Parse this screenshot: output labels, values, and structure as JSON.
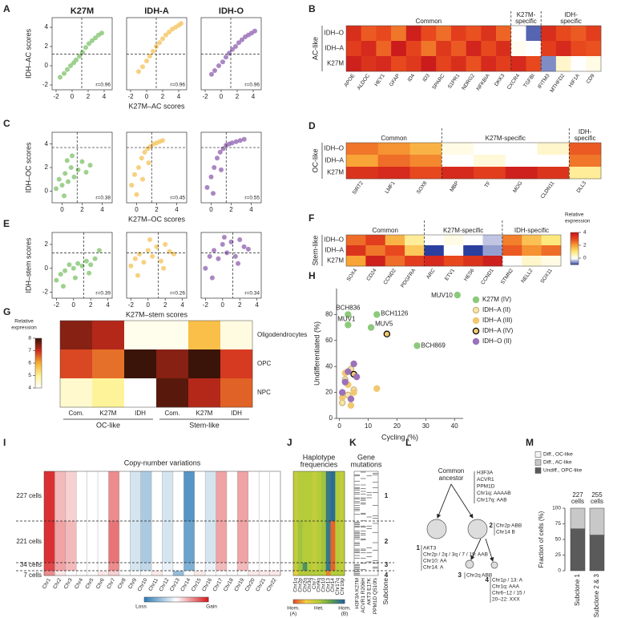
{
  "A": {
    "letter": "A",
    "ylabel": "IDH–AC scores",
    "xlabel": "K27M–AC scores",
    "xlim": [
      -2.5,
      5
    ],
    "ylim": [
      -2.5,
      5
    ],
    "xticks": [
      -2,
      0,
      2,
      4
    ],
    "yticks": [
      -2,
      0,
      2,
      4
    ],
    "thresholds": {
      "x": 1.2,
      "y": 1.2
    },
    "panels": [
      {
        "title": "K27M",
        "color": "#8dc97b",
        "x": [
          -1.5,
          -1,
          -0.6,
          -0.2,
          0.2,
          0.5,
          0.9,
          1.3,
          1.7,
          2.1,
          2.5,
          2.9,
          3.3,
          3.7
        ],
        "y": [
          -1.2,
          -0.8,
          -0.4,
          0,
          0.3,
          0.6,
          1,
          1.4,
          1.9,
          2.3,
          2.6,
          2.9,
          3.2,
          3.4
        ],
        "r": "r=0.96"
      },
      {
        "title": "IDH-A",
        "color": "#f6c96b",
        "x": [
          -1,
          -0.5,
          0,
          0.4,
          0.8,
          1.2,
          1.6,
          2,
          2.4,
          2.8,
          3.2,
          3.6,
          4,
          4.3
        ],
        "y": [
          -0.6,
          -0.1,
          0.5,
          1,
          1.5,
          2,
          2.4,
          2.8,
          3.2,
          3.5,
          3.8,
          4,
          4.2,
          4.4
        ],
        "r": "r=0.96"
      },
      {
        "title": "IDH-O",
        "color": "#9b72b9",
        "x": [
          -1.2,
          -0.8,
          -0.3,
          0.2,
          0.6,
          1,
          1.4,
          1.8,
          2.2,
          2.6,
          3,
          3.4,
          3.8,
          4.2
        ],
        "y": [
          -0.9,
          -0.5,
          0,
          0.4,
          0.9,
          1.3,
          1.7,
          2,
          2.4,
          2.7,
          3,
          3.2,
          3.4,
          3.6
        ],
        "r": "r=0.96"
      }
    ]
  },
  "C": {
    "letter": "C",
    "ylabel": "IDH–OC scores",
    "xlabel": "K27M–OC scores",
    "xlim": [
      -1,
      5
    ],
    "ylim": [
      -1,
      5
    ],
    "xticks": [
      0,
      2,
      4
    ],
    "yticks": [
      0,
      2,
      4
    ],
    "thresholds": {
      "x": 1.5,
      "y": 3.7
    },
    "panels": [
      {
        "color": "#8dc97b",
        "x": [
          -0.6,
          -0.3,
          0,
          0.3,
          0.6,
          0.9,
          1.2,
          1.6,
          2,
          2.4,
          2.8,
          0.2,
          0.5,
          1
        ],
        "y": [
          0.2,
          1,
          0.5,
          1.5,
          0.8,
          2,
          1.2,
          1.8,
          2.5,
          1.6,
          2.2,
          -0.4,
          2.6,
          3
        ],
        "r": "r=0.38"
      },
      {
        "color": "#f6c96b",
        "x": [
          -0.5,
          -0.2,
          0.2,
          0.5,
          0.8,
          1.1,
          1.4,
          1.7,
          2,
          2.3,
          2.6,
          0,
          0.6,
          1.2
        ],
        "y": [
          0.5,
          1.4,
          2,
          2.8,
          3.3,
          3.6,
          3.8,
          4,
          4.1,
          4.2,
          4.3,
          -0.3,
          1,
          2.4
        ],
        "r": "r=0.45"
      },
      {
        "color": "#9b72b9",
        "x": [
          -0.4,
          0,
          0.3,
          0.6,
          0.9,
          1.2,
          1.5,
          1.8,
          2.1,
          2.5,
          2.9,
          3.3,
          0.2,
          1
        ],
        "y": [
          0.3,
          1.2,
          2,
          2.8,
          3.3,
          3.6,
          3.9,
          4,
          4.1,
          4.2,
          4.3,
          4.4,
          -0.2,
          1.8
        ],
        "r": "r=0.55"
      }
    ]
  },
  "E": {
    "letter": "E",
    "ylabel": "IDH–stem scores",
    "xlabel": "K27M–stem scores",
    "xlim": [
      -2.5,
      4.5
    ],
    "ylim": [
      -2.5,
      3
    ],
    "xticks": [
      -2,
      0,
      2,
      4
    ],
    "yticks": [
      -2,
      0,
      2
    ],
    "thresholds": {
      "x": 1.2,
      "y": 1.3
    },
    "panels": [
      {
        "color": "#8dc97b",
        "x": [
          -2,
          -1.5,
          -1,
          -0.5,
          0,
          0.5,
          1,
          1.5,
          2,
          2.5,
          3,
          -1.2,
          0.2,
          1.8
        ],
        "y": [
          -1,
          -0.5,
          -0.2,
          0.3,
          0,
          0.4,
          0.2,
          0.6,
          0.3,
          0.8,
          1.5,
          -1.5,
          -0.8,
          -0.4
        ],
        "r": "r=0.39"
      },
      {
        "color": "#f6c96b",
        "x": [
          -2,
          -1.5,
          -1,
          -0.5,
          0,
          0.5,
          1,
          1.5,
          2,
          2.5,
          3,
          -1.2,
          0.2,
          1.8
        ],
        "y": [
          0.2,
          0.8,
          1.2,
          0.5,
          1.5,
          1,
          1.8,
          0.6,
          2,
          1.4,
          1.2,
          -0.6,
          2.4,
          0
        ],
        "r": "r=0.26"
      },
      {
        "color": "#9b72b9",
        "x": [
          -2,
          -1.5,
          -1,
          -0.5,
          0,
          0.5,
          1,
          1.5,
          2,
          2.5,
          3,
          -1.2,
          0.2,
          1.8
        ],
        "y": [
          0,
          1,
          1.5,
          0.8,
          2,
          1.3,
          2.2,
          1,
          2.4,
          1.8,
          1.6,
          -0.8,
          2.6,
          0.4
        ],
        "r": "r=0.34"
      }
    ]
  },
  "B": {
    "letter": "B",
    "row_group": "AC-like",
    "rows": [
      "IDH–O",
      "IDH–A",
      "K27M"
    ],
    "groups": [
      {
        "label": [
          "Common"
        ],
        "genes": [
          "APOE",
          "ALDOC",
          "HEY1",
          "GFAP",
          "ID4",
          "ID3",
          "SPARC",
          "S1PR1",
          "NDRG2",
          "NFKBIA",
          "DKK3"
        ],
        "values": [
          [
            3.5,
            2.8,
            3,
            2.5,
            3.8,
            3,
            2.6,
            3.2,
            2.9,
            3.4,
            2.7
          ],
          [
            3.2,
            3.6,
            2.7,
            3.9,
            3.1,
            2.5,
            3.3,
            2.8,
            3.7,
            3,
            3.5
          ],
          [
            3.8,
            3.4,
            3.6,
            3,
            3.3,
            3.9,
            3.1,
            3.5,
            2.9,
            3.6,
            3.2
          ]
        ]
      },
      {
        "label": [
          "K27M-",
          "specific"
        ],
        "genes": [
          "CXCR4",
          "TGFBI"
        ],
        "values": [
          [
            0,
            -0.8
          ],
          [
            0.1,
            0
          ],
          [
            3.6,
            3
          ]
        ]
      },
      {
        "label": [
          "IDH-",
          "specific"
        ],
        "genes": [
          "IFITM3",
          "MTHFD2",
          "HIF1A",
          "CD9"
        ],
        "values": [
          [
            3.5,
            3,
            2.8,
            3.2
          ],
          [
            3.2,
            3.6,
            3,
            2.9
          ],
          [
            -0.6,
            0.4,
            0,
            0.2
          ]
        ]
      }
    ]
  },
  "D": {
    "letter": "D",
    "row_group": "OC-like",
    "rows": [
      "IDH–O",
      "IDH–A",
      "K27M"
    ],
    "groups": [
      {
        "label": [
          "Common"
        ],
        "genes": [
          "SIRT2",
          "LMF1",
          "SOX8"
        ],
        "values": [
          [
            2.5,
            2.2,
            1.8
          ],
          [
            2,
            2.6,
            2.3
          ],
          [
            3.4,
            3.6,
            3
          ]
        ]
      },
      {
        "label": [
          "K27M-specific"
        ],
        "genes": [
          "MBP",
          "TF",
          "MOG",
          "CLDN11"
        ],
        "values": [
          [
            0.2,
            0,
            0,
            0.4
          ],
          [
            0,
            0.3,
            0,
            0
          ],
          [
            3.6,
            3.2,
            3.8,
            3.4
          ]
        ]
      },
      {
        "label": [
          "IDH-",
          "specific"
        ],
        "genes": [
          "DLL3"
        ],
        "values": [
          [
            2.8
          ],
          [
            2.5
          ],
          [
            0.8
          ]
        ]
      }
    ]
  },
  "F": {
    "letter": "F",
    "row_group": "Stem-like",
    "rows": [
      "IDH–O",
      "IDH–A",
      "K27M"
    ],
    "groups": [
      {
        "label": [
          "Common"
        ],
        "genes": [
          "SOX4",
          "CD24",
          "CCND2",
          "PDGFRA"
        ],
        "values": [
          [
            2.6,
            3.2,
            1.8,
            0.8
          ],
          [
            3.4,
            2.5,
            3,
            1.5
          ],
          [
            2,
            3.8,
            2.6,
            3.2
          ]
        ]
      },
      {
        "label": [
          "K27M-specific"
        ],
        "genes": [
          "ARC",
          "ETV1",
          "HES6",
          "CCND1"
        ],
        "values": [
          [
            0,
            0.2,
            0,
            -0.3
          ],
          [
            -1,
            0,
            -1,
            -0.5
          ],
          [
            3.6,
            3,
            3.4,
            3.8
          ]
        ]
      },
      {
        "label": [
          "IDH-specific"
        ],
        "genes": [
          "STMN2",
          "NELL2",
          "SOX11"
        ],
        "values": [
          [
            2.4,
            1.6,
            1
          ],
          [
            2.8,
            2.2,
            2.6
          ],
          [
            0,
            0.4,
            0.2
          ]
        ]
      }
    ],
    "colorbar": {
      "label": [
        "Relative",
        "expression"
      ],
      "lim": [
        -1,
        4
      ],
      "ticks": [
        0,
        2,
        4
      ],
      "colors": [
        "#2b3f9e",
        "#ffffff",
        "#ffe97f",
        "#f8a436",
        "#e8481e",
        "#c8161c"
      ]
    }
  },
  "G": {
    "letter": "G",
    "rows": [
      "Oligodendrocytes",
      "OPC",
      "NPC"
    ],
    "columns": [
      "Com.",
      "K27M",
      "IDH",
      "Com.",
      "K27M",
      "IDH"
    ],
    "groups": [
      "OC-like",
      "Stem-like"
    ],
    "values": [
      [
        7.5,
        7.2,
        4.2,
        4.2,
        5.8,
        4.3
      ],
      [
        6.8,
        6.5,
        8,
        7.5,
        8.2,
        6.9
      ],
      [
        4.5,
        5,
        4,
        7.8,
        7.2,
        6.6
      ]
    ],
    "colorbar": {
      "label": [
        "Relative",
        "expression"
      ],
      "lim": [
        4,
        8
      ],
      "ticks": [
        4,
        5,
        6,
        7,
        8
      ],
      "colors": [
        "#ffffff",
        "#fff39a",
        "#f7b233",
        "#d22d1e",
        "#3a1408"
      ]
    }
  },
  "H": {
    "letter": "H",
    "xlabel": "Cycling (%)",
    "ylabel": "Undifferentiated (%)",
    "xlim": [
      -1,
      43
    ],
    "ylim": [
      0,
      100
    ],
    "xticks": [
      0,
      10,
      20,
      30,
      40
    ],
    "yticks": [
      0,
      20,
      40,
      60,
      80
    ],
    "series": [
      {
        "name": "K27M (IV)",
        "color": "#8dc97b",
        "edgecolor": "#8dc97b",
        "x": [
          41,
          3,
          13,
          3,
          11,
          27
        ],
        "y": [
          95,
          80,
          80,
          72,
          70,
          56
        ],
        "labels": [
          "MUV10",
          "BCH836",
          "BCH1126",
          "MUV1",
          "MUV5",
          "BCH869"
        ]
      },
      {
        "name": "IDH–A (II)",
        "color": "#f8e4a8",
        "edgecolor": "#c8b57e",
        "x": [
          2,
          4,
          5,
          1,
          3
        ],
        "y": [
          30,
          38,
          22,
          12,
          18
        ]
      },
      {
        "name": "IDH–A (III)",
        "color": "#f2c871",
        "edgecolor": "#f2c871",
        "x": [
          3,
          5,
          13,
          2,
          4,
          1
        ],
        "y": [
          26,
          20,
          23,
          35,
          10,
          16
        ]
      },
      {
        "name": "IDH–A (IV)",
        "color": "#f2c871",
        "edgecolor": "#000000",
        "x": [
          16.5,
          5
        ],
        "y": [
          65,
          34
        ]
      },
      {
        "name": "IDH–O (II)",
        "color": "#9b72b9",
        "edgecolor": "#9b72b9",
        "x": [
          5,
          2,
          1,
          4,
          3,
          6
        ],
        "y": [
          42,
          28,
          20,
          15,
          36,
          32
        ]
      }
    ]
  },
  "I": {
    "letter": "I",
    "title": "Copy-number variations",
    "rows": [
      "227 cells",
      "221 cells",
      "34 cells",
      "7 cells"
    ],
    "chromosomes": [
      "Chr1",
      "Chr2",
      "Chr3",
      "Chr4",
      "Chr5",
      "Chr6",
      "Chr7",
      "Chr8",
      "Chr9",
      "Chr10",
      "Chr11",
      "Chr12",
      "Chr13",
      "Chr14",
      "Chr15",
      "Chr16",
      "Chr17",
      "Chr18",
      "Chr19",
      "Chr20",
      "Chr21",
      "Chr22"
    ],
    "values": [
      [
        0.9,
        0.3,
        0.2,
        0,
        0,
        0,
        0.5,
        0,
        -0.2,
        -0.4,
        0,
        -0.2,
        0,
        -0.8,
        0,
        -0.2,
        0.4,
        0,
        0.4,
        0,
        0,
        0
      ],
      [
        0.9,
        0.4,
        0.3,
        0,
        0,
        0,
        0.6,
        0,
        -0.2,
        -0.4,
        0,
        -0.2,
        0,
        -0.7,
        0,
        -0.2,
        0.4,
        0,
        0.4,
        0,
        0,
        0
      ],
      [
        0.8,
        0.4,
        0.3,
        0,
        0,
        0,
        0.5,
        0,
        -0.2,
        -0.3,
        0,
        -0.1,
        0,
        -0.6,
        0,
        -0.1,
        0.3,
        0,
        0.3,
        0,
        0,
        0
      ],
      [
        0.5,
        0.1,
        0,
        0,
        0,
        0.1,
        0.2,
        0,
        0,
        0,
        0.1,
        0,
        -0.5,
        0,
        0.1,
        0,
        0,
        0,
        0,
        0.1,
        0.1,
        0.1
      ]
    ],
    "colorbar": {
      "labels": [
        "Loss",
        "Gain"
      ],
      "lim": [
        -1,
        1
      ],
      "colors": [
        "#2c7bb6",
        "#ffffff",
        "#d7191c"
      ]
    }
  },
  "J": {
    "letter": "J",
    "title": [
      "Haplotype",
      "frequencies"
    ],
    "columns": [
      "Chr1q",
      "Chr2p",
      "Chr2q",
      "Chr3q",
      "Chr7",
      "Chr9q",
      "Chr10",
      "Chr13",
      "Chr14",
      "Chr17q",
      "Chr19p"
    ],
    "values": [
      [
        0.45,
        0.5,
        0.5,
        0.5,
        0.45,
        0.5,
        0.55,
        0.9,
        0.95,
        0.5,
        0.45
      ],
      [
        0.45,
        0.55,
        0.5,
        0.5,
        0.45,
        0.5,
        0.55,
        0.9,
        0.05,
        0.5,
        0.45
      ],
      [
        0.45,
        0.55,
        0.8,
        0.5,
        0.45,
        0.5,
        0.55,
        0.9,
        0.05,
        0.5,
        0.45
      ],
      [
        0.3,
        0.5,
        0.5,
        0.5,
        0.5,
        0.5,
        0.5,
        0.1,
        0.5,
        0.5,
        0.5
      ]
    ],
    "colorbar": {
      "labels": [
        [
          "Hom.",
          "(A)"
        ],
        [
          "Het."
        ],
        [
          "Hom.",
          "(B)"
        ]
      ],
      "lim": [
        0,
        1
      ],
      "colors": [
        "#e3482a",
        "#f4d03f",
        "#b5cc3a",
        "#5aa04f",
        "#1f5fa8"
      ]
    }
  },
  "K": {
    "letter": "K",
    "title": [
      "Gene",
      "mutations"
    ],
    "genes": [
      "H3F3A K27M",
      "ACVR1 R206H",
      "AKT3 E17K",
      "PPM1D Q510fs"
    ],
    "subclones": [
      "1",
      "2",
      "3",
      "4"
    ],
    "subclone_label": "Subclone"
  },
  "L": {
    "letter": "L",
    "root": [
      "Common",
      "ancestor"
    ],
    "root_text": [
      "H3F3A",
      "ACVR1",
      "PPM1D",
      "Chr1q: AAAAB",
      "Chr17q: AAB"
    ],
    "nodes": [
      {
        "id": "1",
        "text": [
          "AKT3",
          "Chr2p / 2q / 3q / 7 / 19: AAB",
          "Chr10: AA",
          "Chr14: A"
        ]
      },
      {
        "id": "2",
        "text": [
          "Chr2p ABB",
          "Chr14 B"
        ]
      },
      {
        "id": "3",
        "text": [
          "Chr2q ABB"
        ]
      },
      {
        "id": "4",
        "text": [
          "Chr1p / 13: A",
          "Chr1q: AAA",
          "Chr6–12 / 15 /",
          "20–22: XXX"
        ]
      }
    ]
  },
  "M": {
    "letter": "M",
    "ylabel": "Fraction of cells (%)",
    "categories": [
      "Subclone 1",
      "Subclone 2 & 3"
    ],
    "counts": [
      [
        "227",
        "cells"
      ],
      [
        "255",
        "cells"
      ]
    ],
    "ylim": [
      0,
      100
    ],
    "yticks": [
      0,
      25,
      50,
      75,
      100
    ],
    "series": [
      {
        "name": "Undiff., OPC-like",
        "color": "#5a5a5a",
        "values": [
          67,
          57
        ]
      },
      {
        "name": "Diff., AC-like",
        "color": "#c8c8c8",
        "values": [
          33,
          43
        ]
      },
      {
        "name": "Diff., OC-like",
        "color": "#f4f4f4",
        "values": [
          0,
          0
        ]
      }
    ]
  }
}
